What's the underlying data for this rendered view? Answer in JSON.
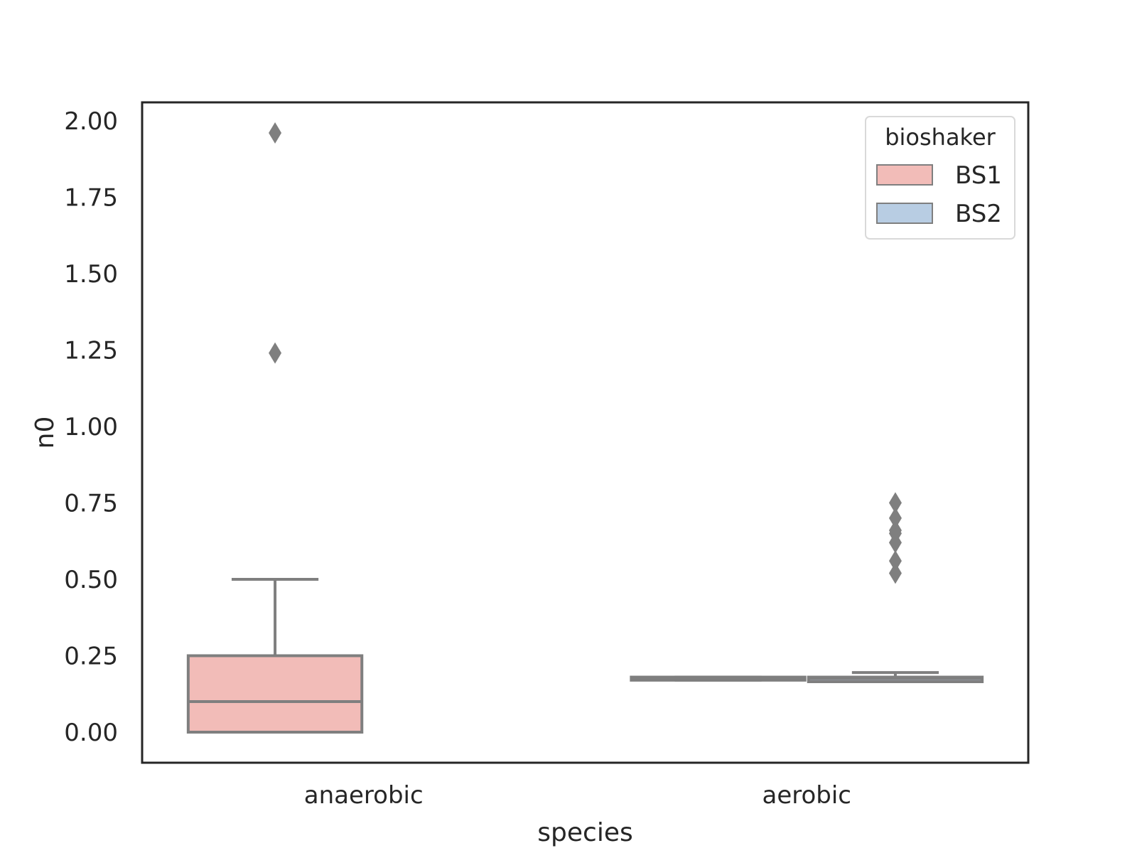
{
  "chart_data": {
    "type": "box",
    "xlabel": "species",
    "ylabel": "n0",
    "categories": [
      "anaerobic",
      "aerobic"
    ],
    "ylim": [
      -0.1,
      2.06
    ],
    "yticks": [
      "0.00",
      "0.25",
      "0.50",
      "0.75",
      "1.00",
      "1.25",
      "1.50",
      "1.75",
      "2.00"
    ],
    "grid": false,
    "legend": {
      "title": "bioshaker",
      "placement": "top-right",
      "entries": [
        {
          "name": "BS1",
          "color": "#f2bcb8"
        },
        {
          "name": "BS2",
          "color": "#b8cde3"
        }
      ]
    },
    "series": [
      {
        "name": "BS1",
        "color": "#f2bcb8",
        "boxes": [
          {
            "category": "anaerobic",
            "q1": 0.0,
            "median": 0.1,
            "q3": 0.25,
            "whisker_low": 0.0,
            "whisker_high": 0.5,
            "outliers": [
              1.24,
              1.96
            ]
          },
          {
            "category": "aerobic",
            "q1": 0.17,
            "median": 0.175,
            "q3": 0.18,
            "whisker_low": 0.17,
            "whisker_high": 0.18,
            "outliers": []
          }
        ]
      },
      {
        "name": "BS2",
        "color": "#b8cde3",
        "boxes": [
          {
            "category": "aerobic",
            "q1": 0.165,
            "median": 0.175,
            "q3": 0.18,
            "whisker_low": 0.165,
            "whisker_high": 0.195,
            "outliers": [
              0.52,
              0.56,
              0.62,
              0.65,
              0.66,
              0.7,
              0.75
            ]
          }
        ]
      }
    ],
    "colors": {
      "box_edge": "#7f7f7f",
      "frame": "#262626",
      "outlier": "#7f7f7f"
    }
  }
}
